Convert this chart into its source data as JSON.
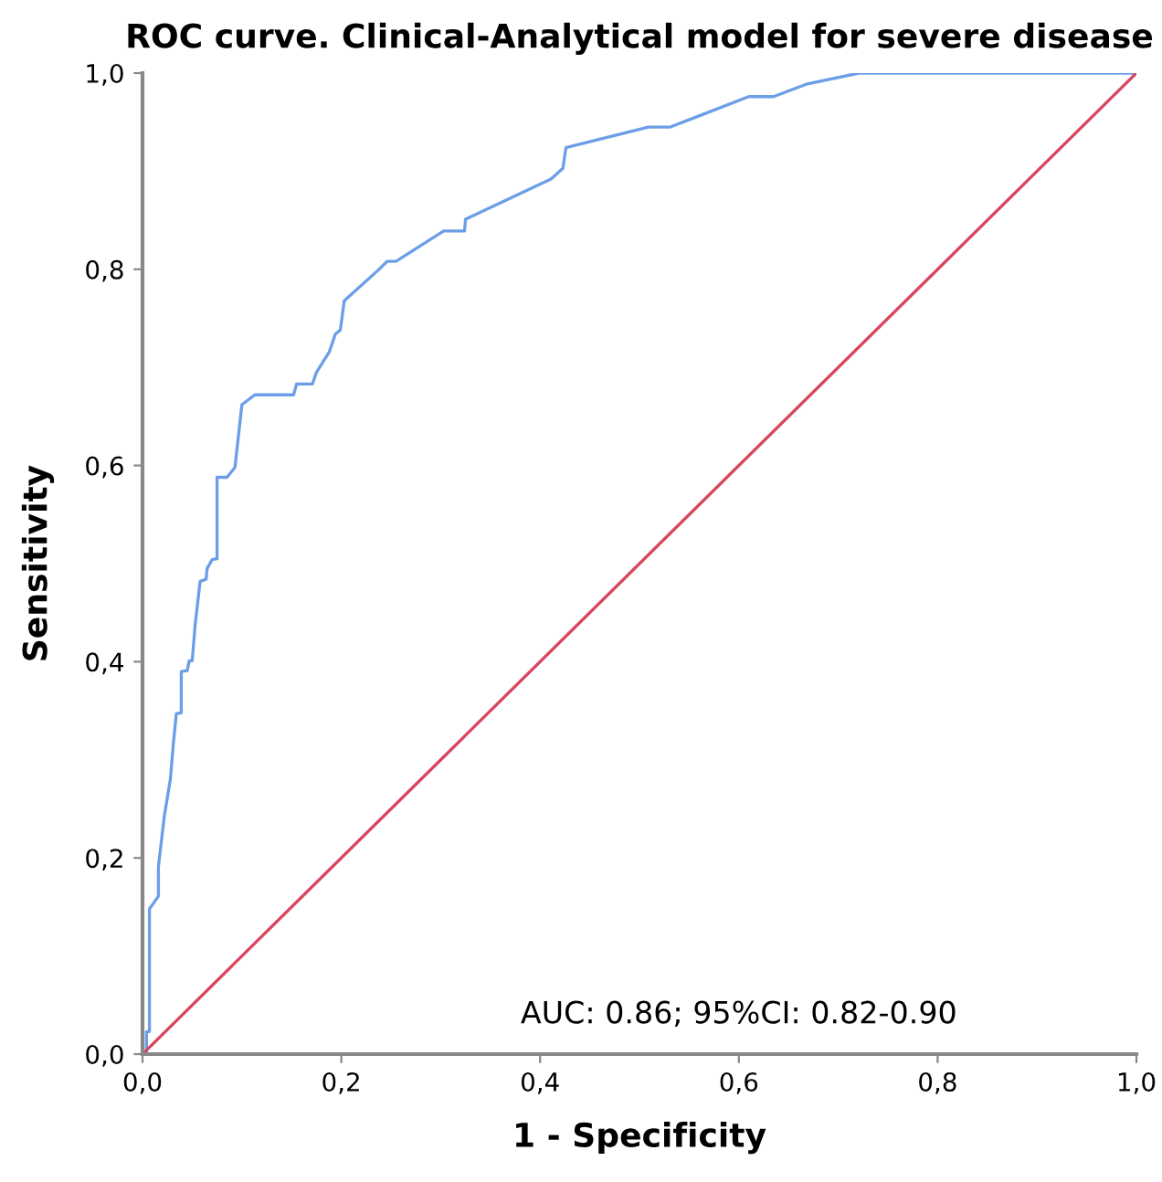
{
  "chart_data": {
    "type": "line",
    "title": "ROC curve. Clinical-Analytical model for severe disease",
    "xlabel": "1 - Specificity",
    "ylabel": "Sensitivity",
    "annotations": [
      "AUC: 0.86; 95%CI: 0.82-0.90"
    ],
    "series": [
      {
        "color": "#6c9ee8",
        "x": [
          0,
          0.004,
          0.004,
          0.007,
          0.007,
          0.016,
          0.016,
          0.022,
          0.028,
          0.031,
          0.034,
          0.039,
          0.039,
          0.045,
          0.047,
          0.05,
          0.053,
          0.058,
          0.064,
          0.065,
          0.07,
          0.075,
          0.075,
          0.085,
          0.093,
          0.1,
          0.113,
          0.152,
          0.155,
          0.171,
          0.175,
          0.188,
          0.194,
          0.199,
          0.203,
          0.237,
          0.246,
          0.255,
          0.303,
          0.324,
          0.325,
          0.411,
          0.423,
          0.426,
          0.509,
          0.531,
          0.61,
          0.635,
          0.669,
          0.721,
          1.0
        ],
        "values": [
          0,
          0,
          0.023,
          0.023,
          0.148,
          0.161,
          0.191,
          0.243,
          0.28,
          0.316,
          0.347,
          0.348,
          0.39,
          0.391,
          0.401,
          0.401,
          0.438,
          0.482,
          0.484,
          0.495,
          0.504,
          0.505,
          0.588,
          0.588,
          0.598,
          0.662,
          0.672,
          0.672,
          0.683,
          0.683,
          0.695,
          0.716,
          0.734,
          0.738,
          0.768,
          0.799,
          0.808,
          0.808,
          0.839,
          0.839,
          0.851,
          0.892,
          0.903,
          0.924,
          0.945,
          0.945,
          0.976,
          0.976,
          0.989,
          1.0,
          1.0
        ]
      },
      {
        "color": "#d9455f",
        "x": [
          0,
          1
        ],
        "values": [
          0,
          1
        ]
      }
    ],
    "xlim": [
      0,
      1
    ],
    "ylim": [
      0,
      1
    ],
    "xticks": [
      {
        "value": 0,
        "label": "0,0"
      },
      {
        "value": 0.2,
        "label": "0,2"
      },
      {
        "value": 0.4,
        "label": "0,4"
      },
      {
        "value": 0.6,
        "label": "0,6"
      },
      {
        "value": 0.8,
        "label": "0,8"
      },
      {
        "value": 1,
        "label": "1,0"
      }
    ],
    "yticks": [
      {
        "value": 0,
        "label": "0,0"
      },
      {
        "value": 0.2,
        "label": "0,2"
      },
      {
        "value": 0.4,
        "label": "0,4"
      },
      {
        "value": 0.6,
        "label": "0,6"
      },
      {
        "value": 0.8,
        "label": "0,8"
      },
      {
        "value": 1,
        "label": "1,0"
      }
    ],
    "grid": false,
    "legend": false
  }
}
